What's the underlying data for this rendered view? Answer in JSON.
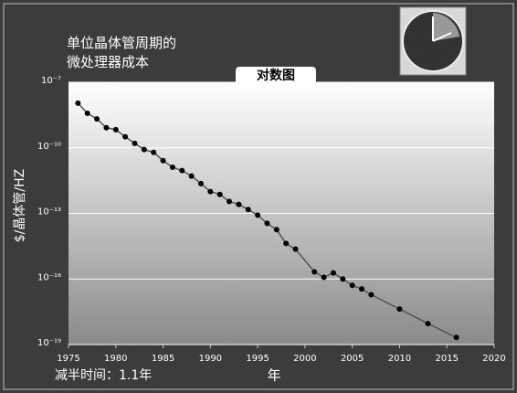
{
  "chart_data": {
    "type": "line",
    "title": "单位晶体管周期的微处理器成本",
    "annotation": "对数图",
    "ylabel": "$/晶体管/HZ",
    "xlabel": "年",
    "footnote": "减半时间：1.1年",
    "log_y": true,
    "grid": true,
    "line_color": "#555555",
    "marker_color": "#000000",
    "x": [
      1976,
      1977,
      1978,
      1979,
      1980,
      1981,
      1982,
      1983,
      1984,
      1985,
      1986,
      1987,
      1988,
      1989,
      1990,
      1991,
      1992,
      1993,
      1994,
      1995,
      1996,
      1997,
      1998,
      1999,
      2001,
      2002,
      2003,
      2004,
      2005,
      2006,
      2007,
      2010,
      2013,
      2016
    ],
    "values": [
      1.1e-08,
      3.8e-09,
      2.1e-09,
      8.3e-10,
      6.8e-10,
      3.2e-10,
      1.6e-10,
      8.3e-11,
      6.2e-11,
      2.6e-11,
      1.3e-11,
      9.1e-12,
      5.1e-12,
      2.3e-12,
      1e-12,
      7.4e-13,
      3.5e-13,
      2.6e-13,
      1.5e-13,
      8.3e-14,
      3.5e-14,
      1.8e-14,
      4.2e-15,
      2.3e-15,
      2.1e-16,
      1.2e-16,
      1.9e-16,
      1e-16,
      5.1e-17,
      3.5e-17,
      1.9e-17,
      4.2e-18,
      9.1e-19,
      2.1e-19
    ],
    "xlim": [
      1975,
      2020
    ],
    "xticks": [
      1975,
      1980,
      1985,
      1990,
      1995,
      2000,
      2005,
      2010,
      2015,
      2020
    ],
    "ylim": [
      1e-19,
      1e-07
    ],
    "yticks": [
      {
        "value": 1e-07,
        "label": "10⁻⁷"
      },
      {
        "value": 1e-10,
        "label": "10⁻¹⁰"
      },
      {
        "value": 1e-13,
        "label": "10⁻¹³"
      },
      {
        "value": 1e-16,
        "label": "10⁻¹⁶"
      },
      {
        "value": 1e-19,
        "label": "10⁻¹⁹"
      }
    ]
  }
}
